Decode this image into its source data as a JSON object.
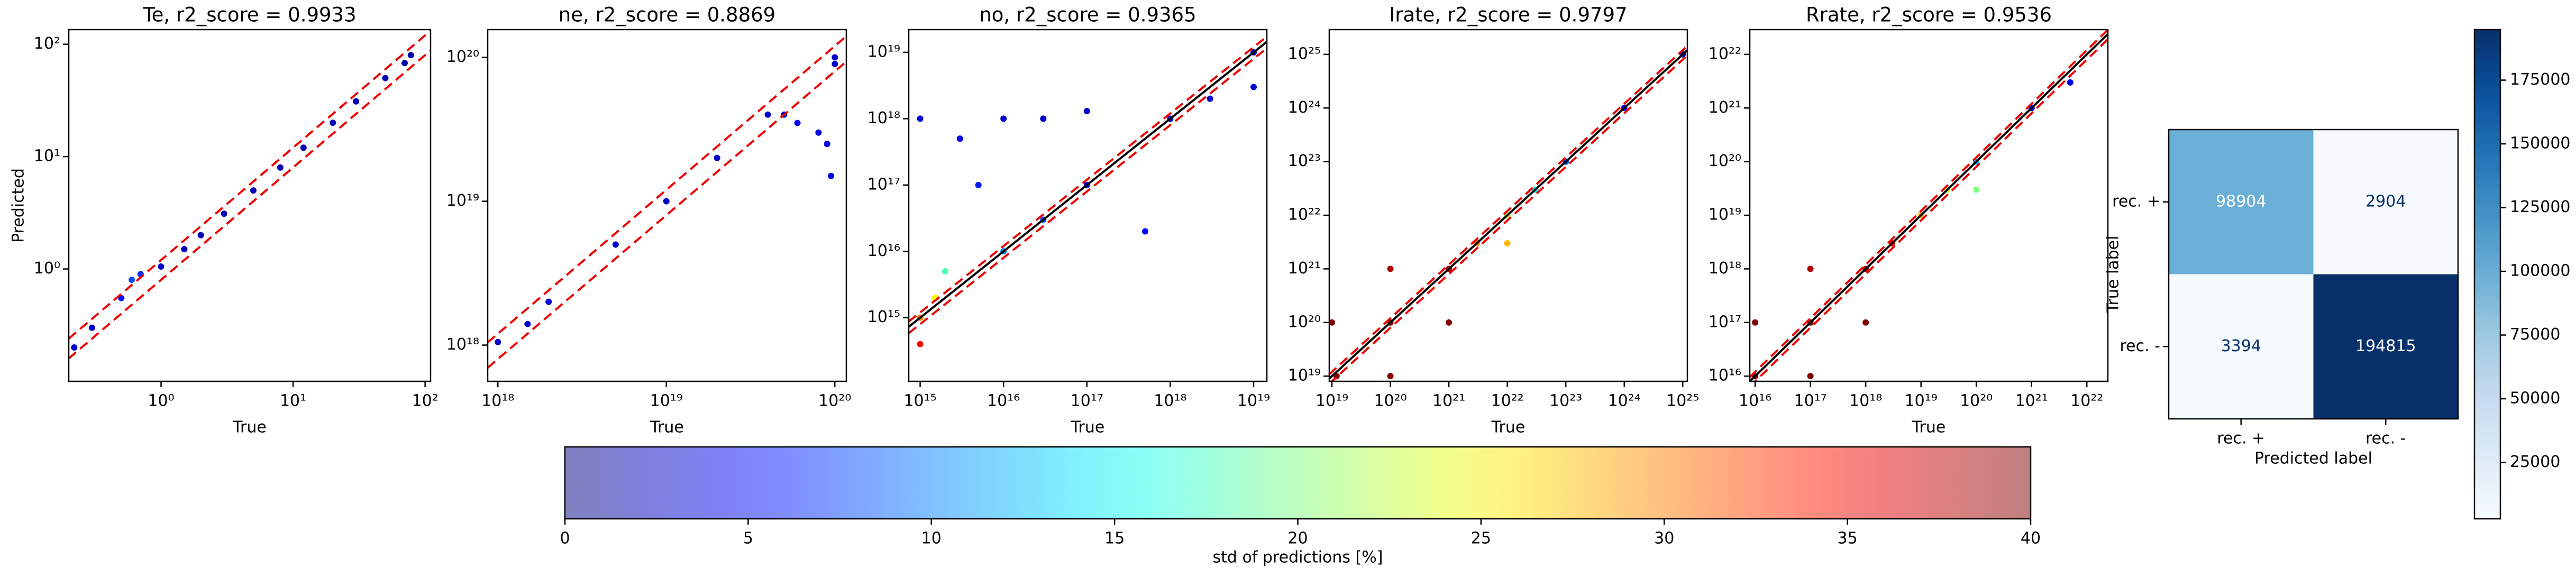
{
  "chart_data": [
    {
      "type": "scatter",
      "title": "Te, r2_score = 0.9933",
      "xlabel": "True",
      "ylabel": "Predicted",
      "log": true,
      "xlim": [
        0.2,
        110
      ],
      "ylim": [
        0.1,
        135
      ],
      "xticks": [
        {
          "value": 1,
          "label": "10⁰"
        },
        {
          "value": 10,
          "label": "10¹"
        },
        {
          "value": 100,
          "label": "10²"
        }
      ],
      "yticks": [
        {
          "value": 1,
          "label": "10⁰"
        },
        {
          "value": 10,
          "label": "10¹"
        },
        {
          "value": 100,
          "label": "10²"
        }
      ],
      "ref_factors": [
        1.2,
        0.8
      ],
      "identity_line": false,
      "x": [
        0.22,
        0.3,
        0.5,
        0.6,
        0.7,
        1,
        1.5,
        2,
        3,
        5,
        8,
        12,
        20,
        30,
        50,
        70,
        78
      ],
      "y": [
        0.2,
        0.3,
        0.55,
        0.8,
        0.9,
        1.05,
        1.5,
        2,
        3.1,
        5,
        8,
        12,
        20,
        31,
        50,
        68,
        80
      ],
      "std": [
        3,
        3,
        6,
        8,
        7,
        3,
        2,
        2,
        2,
        2,
        2,
        2,
        2,
        2,
        2,
        2,
        2
      ]
    },
    {
      "type": "scatter",
      "title": "ne, r2_score = 0.8869",
      "xlabel": "True",
      "log": true,
      "xlim": [
        8.7e+17,
        1.17e+20
      ],
      "ylim": [
        5.6e+17,
        1.56e+20
      ],
      "xticks": [
        {
          "value": 1e+18,
          "label": "10¹⁸"
        },
        {
          "value": 1e+19,
          "label": "10¹⁹"
        },
        {
          "value": 1e+20,
          "label": "10²⁰"
        }
      ],
      "yticks": [
        {
          "value": 1e+18,
          "label": "10¹⁸"
        },
        {
          "value": 1e+19,
          "label": "10¹⁹"
        },
        {
          "value": 1e+20,
          "label": "10²⁰"
        }
      ],
      "ref_factors": [
        1.2,
        0.8
      ],
      "identity_line": false,
      "x": [
        1e+18,
        1.5e+18,
        2e+18,
        5e+18,
        1e+19,
        2e+19,
        4e+19,
        5e+19,
        6e+19,
        8e+19,
        9e+19,
        9.5e+19,
        1e+20,
        1e+20
      ],
      "y": [
        1.05e+18,
        1.4e+18,
        2e+18,
        5e+18,
        1e+19,
        2e+19,
        4e+19,
        4e+19,
        3.5e+19,
        3e+19,
        2.5e+19,
        1.5e+19,
        9e+19,
        1e+20
      ],
      "std": [
        3,
        3,
        3,
        3,
        3,
        3,
        3,
        3,
        4,
        4,
        4,
        4,
        3,
        3
      ]
    },
    {
      "type": "scatter",
      "title": "no, r2_score = 0.9365",
      "xlabel": "True",
      "log": true,
      "xlim": [
        730000000000000.0,
        1.44e+19
      ],
      "ylim": [
        110000000000000.0,
        2.2e+19
      ],
      "xticks": [
        {
          "value": 1000000000000000.0,
          "label": "10¹⁵"
        },
        {
          "value": 1e+16,
          "label": "10¹⁶"
        },
        {
          "value": 1e+17,
          "label": "10¹⁷"
        },
        {
          "value": 1e+18,
          "label": "10¹⁸"
        },
        {
          "value": 1e+19,
          "label": "10¹⁹"
        }
      ],
      "yticks": [
        {
          "value": 1000000000000000.0,
          "label": "10¹⁵"
        },
        {
          "value": 1e+16,
          "label": "10¹⁶"
        },
        {
          "value": 1e+17,
          "label": "10¹⁷"
        },
        {
          "value": 1e+18,
          "label": "10¹⁸"
        },
        {
          "value": 1e+19,
          "label": "10¹⁹"
        }
      ],
      "ref_factors": [
        1.2,
        0.8
      ],
      "identity_line": true,
      "x": [
        1000000000000000.0,
        1000000000000000.0,
        1500000000000000.0,
        1000000000000000.0,
        3000000000000000.0,
        5000000000000000.0,
        1e+16,
        1e+16,
        2000000000000000.0,
        3e+16,
        3e+16,
        1e+17,
        1e+17,
        5e+17,
        1e+18,
        3e+18,
        1e+19,
        1e+19
      ],
      "y": [
        1000000000000000.0,
        400000000000000.0,
        2000000000000000.0,
        1e+18,
        5e+17,
        1e+17,
        1e+16,
        1e+18,
        5000000000000000.0,
        3e+16,
        1e+18,
        1e+17,
        1.3e+18,
        2e+16,
        1e+18,
        2e+18,
        1e+19,
        3e+18
      ],
      "std": [
        30,
        35,
        25,
        3,
        4,
        6,
        10,
        3,
        18,
        8,
        3,
        5,
        3,
        5,
        3,
        3,
        2,
        3
      ]
    },
    {
      "type": "scatter",
      "title": "Irate, r2_score = 0.9797",
      "xlabel": "True",
      "log": true,
      "xlim": [
        9e+18,
        1.2e+25
      ],
      "ylim": [
        8e+18,
        2.9e+25
      ],
      "xticks": [
        {
          "value": 1e+19,
          "label": "10¹⁹"
        },
        {
          "value": 1e+20,
          "label": "10²⁰"
        },
        {
          "value": 1e+21,
          "label": "10²¹"
        },
        {
          "value": 1e+22,
          "label": "10²²"
        },
        {
          "value": 1e+23,
          "label": "10²³"
        },
        {
          "value": 1e+24,
          "label": "10²⁴"
        },
        {
          "value": 1e+25,
          "label": "10²⁵"
        }
      ],
      "yticks": [
        {
          "value": 1e+19,
          "label": "10¹⁹"
        },
        {
          "value": 1e+20,
          "label": "10²⁰"
        },
        {
          "value": 1e+21,
          "label": "10²¹"
        },
        {
          "value": 1e+22,
          "label": "10²²"
        },
        {
          "value": 1e+23,
          "label": "10²³"
        },
        {
          "value": 1e+24,
          "label": "10²⁴"
        },
        {
          "value": 1e+25,
          "label": "10²⁵"
        }
      ],
      "ref_factors": [
        1.2,
        0.8
      ],
      "identity_line": true,
      "x": [
        1.2e+19,
        1e+19,
        1e+20,
        1e+20,
        1e+20,
        1e+21,
        1e+21,
        3e+21,
        1e+22,
        1e+22,
        3e+22,
        1e+23,
        1e+24,
        1e+25
      ],
      "y": [
        1e+19,
        1e+20,
        1e+19,
        1e+20,
        1e+21,
        1e+20,
        1e+21,
        3e+21,
        1e+22,
        3e+21,
        3e+22,
        1e+23,
        1e+24,
        1e+25
      ],
      "std": [
        40,
        40,
        40,
        40,
        38,
        40,
        38,
        30,
        22,
        28,
        15,
        8,
        4,
        3
      ]
    },
    {
      "type": "scatter",
      "title": "Rrate, r2_score = 0.9536",
      "xlabel": "True",
      "log": true,
      "xlim": [
        8000000000000000.0,
        2.4e+22
      ],
      "ylim": [
        8000000000000000.0,
        2.9e+22
      ],
      "xticks": [
        {
          "value": 1e+16,
          "label": "10¹⁶"
        },
        {
          "value": 1e+17,
          "label": "10¹⁷"
        },
        {
          "value": 1e+18,
          "label": "10¹⁸"
        },
        {
          "value": 1e+19,
          "label": "10¹⁹"
        },
        {
          "value": 1e+20,
          "label": "10²⁰"
        },
        {
          "value": 1e+21,
          "label": "10²¹"
        },
        {
          "value": 1e+22,
          "label": "10²²"
        }
      ],
      "yticks": [
        {
          "value": 1e+16,
          "label": "10¹⁶"
        },
        {
          "value": 1e+17,
          "label": "10¹⁷"
        },
        {
          "value": 1e+18,
          "label": "10¹⁸"
        },
        {
          "value": 1e+19,
          "label": "10¹⁹"
        },
        {
          "value": 1e+20,
          "label": "10²⁰"
        },
        {
          "value": 1e+21,
          "label": "10²¹"
        },
        {
          "value": 1e+22,
          "label": "10²²"
        }
      ],
      "ref_factors": [
        1.2,
        0.8
      ],
      "identity_line": true,
      "x": [
        1e+16,
        1e+16,
        1e+17,
        1e+17,
        1e+17,
        1e+18,
        1e+18,
        3e+18,
        1e+19,
        3e+19,
        1e+20,
        1e+20,
        1e+21,
        5e+21
      ],
      "y": [
        1e+16,
        1e+17,
        1e+16,
        1e+17,
        1e+18,
        1e+17,
        1e+18,
        3e+18,
        1e+19,
        3e+19,
        1e+20,
        3e+19,
        1e+21,
        3e+21
      ],
      "std": [
        40,
        40,
        40,
        40,
        38,
        40,
        38,
        35,
        28,
        22,
        12,
        20,
        5,
        4
      ]
    },
    {
      "type": "colorbar",
      "colormap": "jet",
      "alpha": 0.5,
      "xlabel": "std of predictions [%]",
      "xlim": [
        0,
        40
      ],
      "xticks": [
        0,
        5,
        10,
        15,
        20,
        25,
        30,
        35,
        40
      ]
    },
    {
      "type": "heatmap",
      "colormap": "Blues",
      "xlabel": "Predicted label",
      "ylabel": "True label",
      "x_categories": [
        "rec. +",
        "rec. -"
      ],
      "y_categories": [
        "rec. +",
        "rec. -"
      ],
      "values": [
        [
          98904,
          2904
        ],
        [
          3394,
          194815
        ]
      ],
      "clim": [
        2904,
        194815
      ],
      "cticks": [
        25000,
        50000,
        75000,
        100000,
        125000,
        150000,
        175000
      ]
    }
  ]
}
